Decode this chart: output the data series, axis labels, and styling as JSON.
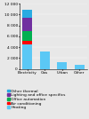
{
  "categories": [
    "Electricity",
    "Gas",
    "Urban",
    "Other"
  ],
  "series_order": [
    "Heating",
    "Air conditioning",
    "Office automation",
    "Lighting and office specifics",
    "Other thermal"
  ],
  "series": {
    "Other thermal": [
      1500,
      0,
      0,
      0
    ],
    "Lighting and office specifics": [
      2500,
      0,
      0,
      0
    ],
    "Office automation": [
      1800,
      0,
      0,
      0
    ],
    "Air conditioning": [
      600,
      0,
      0,
      0
    ],
    "Heating": [
      4500,
      3200,
      1300,
      700
    ]
  },
  "colors": {
    "Other thermal": "#29abe2",
    "Lighting and office specifics": "#7030a0",
    "Office automation": "#00b050",
    "Air conditioning": "#ff0000",
    "Heating": "#5bc8f5"
  },
  "ylim": [
    0,
    12000
  ],
  "yticks": [
    0,
    2000,
    4000,
    6000,
    8000,
    10000,
    12000
  ],
  "ytick_labels": [
    "0",
    "2 000",
    "4 000",
    "6 000",
    "8 000",
    "10 000",
    "12 000"
  ],
  "background_color": "#e8e8e8",
  "legend_order": [
    "Other thermal",
    "Lighting and office specifics",
    "Office automation",
    "Air conditioning",
    "Heating"
  ],
  "legend_fontsize": 3.2,
  "tick_fontsize": 3.2,
  "bar_width": 0.55,
  "fig_width": 1.0,
  "fig_height": 1.34,
  "dpi": 100
}
